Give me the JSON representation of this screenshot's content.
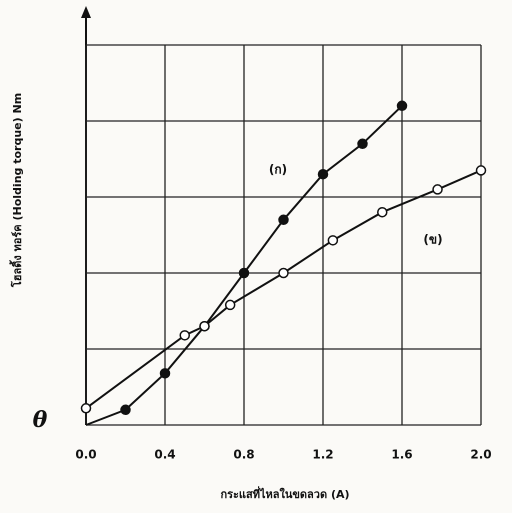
{
  "chart_data": {
    "type": "line",
    "y_label": "โฮลดิ้ง ทอร์ค (Holding torque) Nm",
    "x_label": "กระแสที่ไหลในขดลวด (A)",
    "xlim": [
      0,
      2
    ],
    "ylim": [
      0,
      5
    ],
    "xticks": [
      {
        "value": 0,
        "label": "0.0"
      },
      0.4,
      0.8,
      1.2,
      1.6,
      {
        "value": 2,
        "label": "2.0"
      }
    ],
    "yticks": [
      {
        "value": 0,
        "label": "θ"
      }
    ],
    "ygrid": [
      1,
      2,
      3,
      4,
      5
    ],
    "series": [
      {
        "name": "(ก)",
        "color": "#111111",
        "marker": "filled",
        "x": [
          0,
          0.2,
          0.4,
          0.6,
          0.8,
          1.0,
          1.2,
          1.4,
          1.6
        ],
        "values": [
          0,
          0.2,
          0.68,
          1.3,
          2.0,
          2.7,
          3.3,
          3.7,
          4.2
        ]
      },
      {
        "name": "(ข)",
        "color": "#111111",
        "marker": "open",
        "x": [
          0,
          0.5,
          0.6,
          0.73,
          1.0,
          1.25,
          1.5,
          1.78,
          2.0
        ],
        "values": [
          0.22,
          1.18,
          1.3,
          1.58,
          2.0,
          2.43,
          2.8,
          3.1,
          3.35
        ]
      }
    ]
  }
}
